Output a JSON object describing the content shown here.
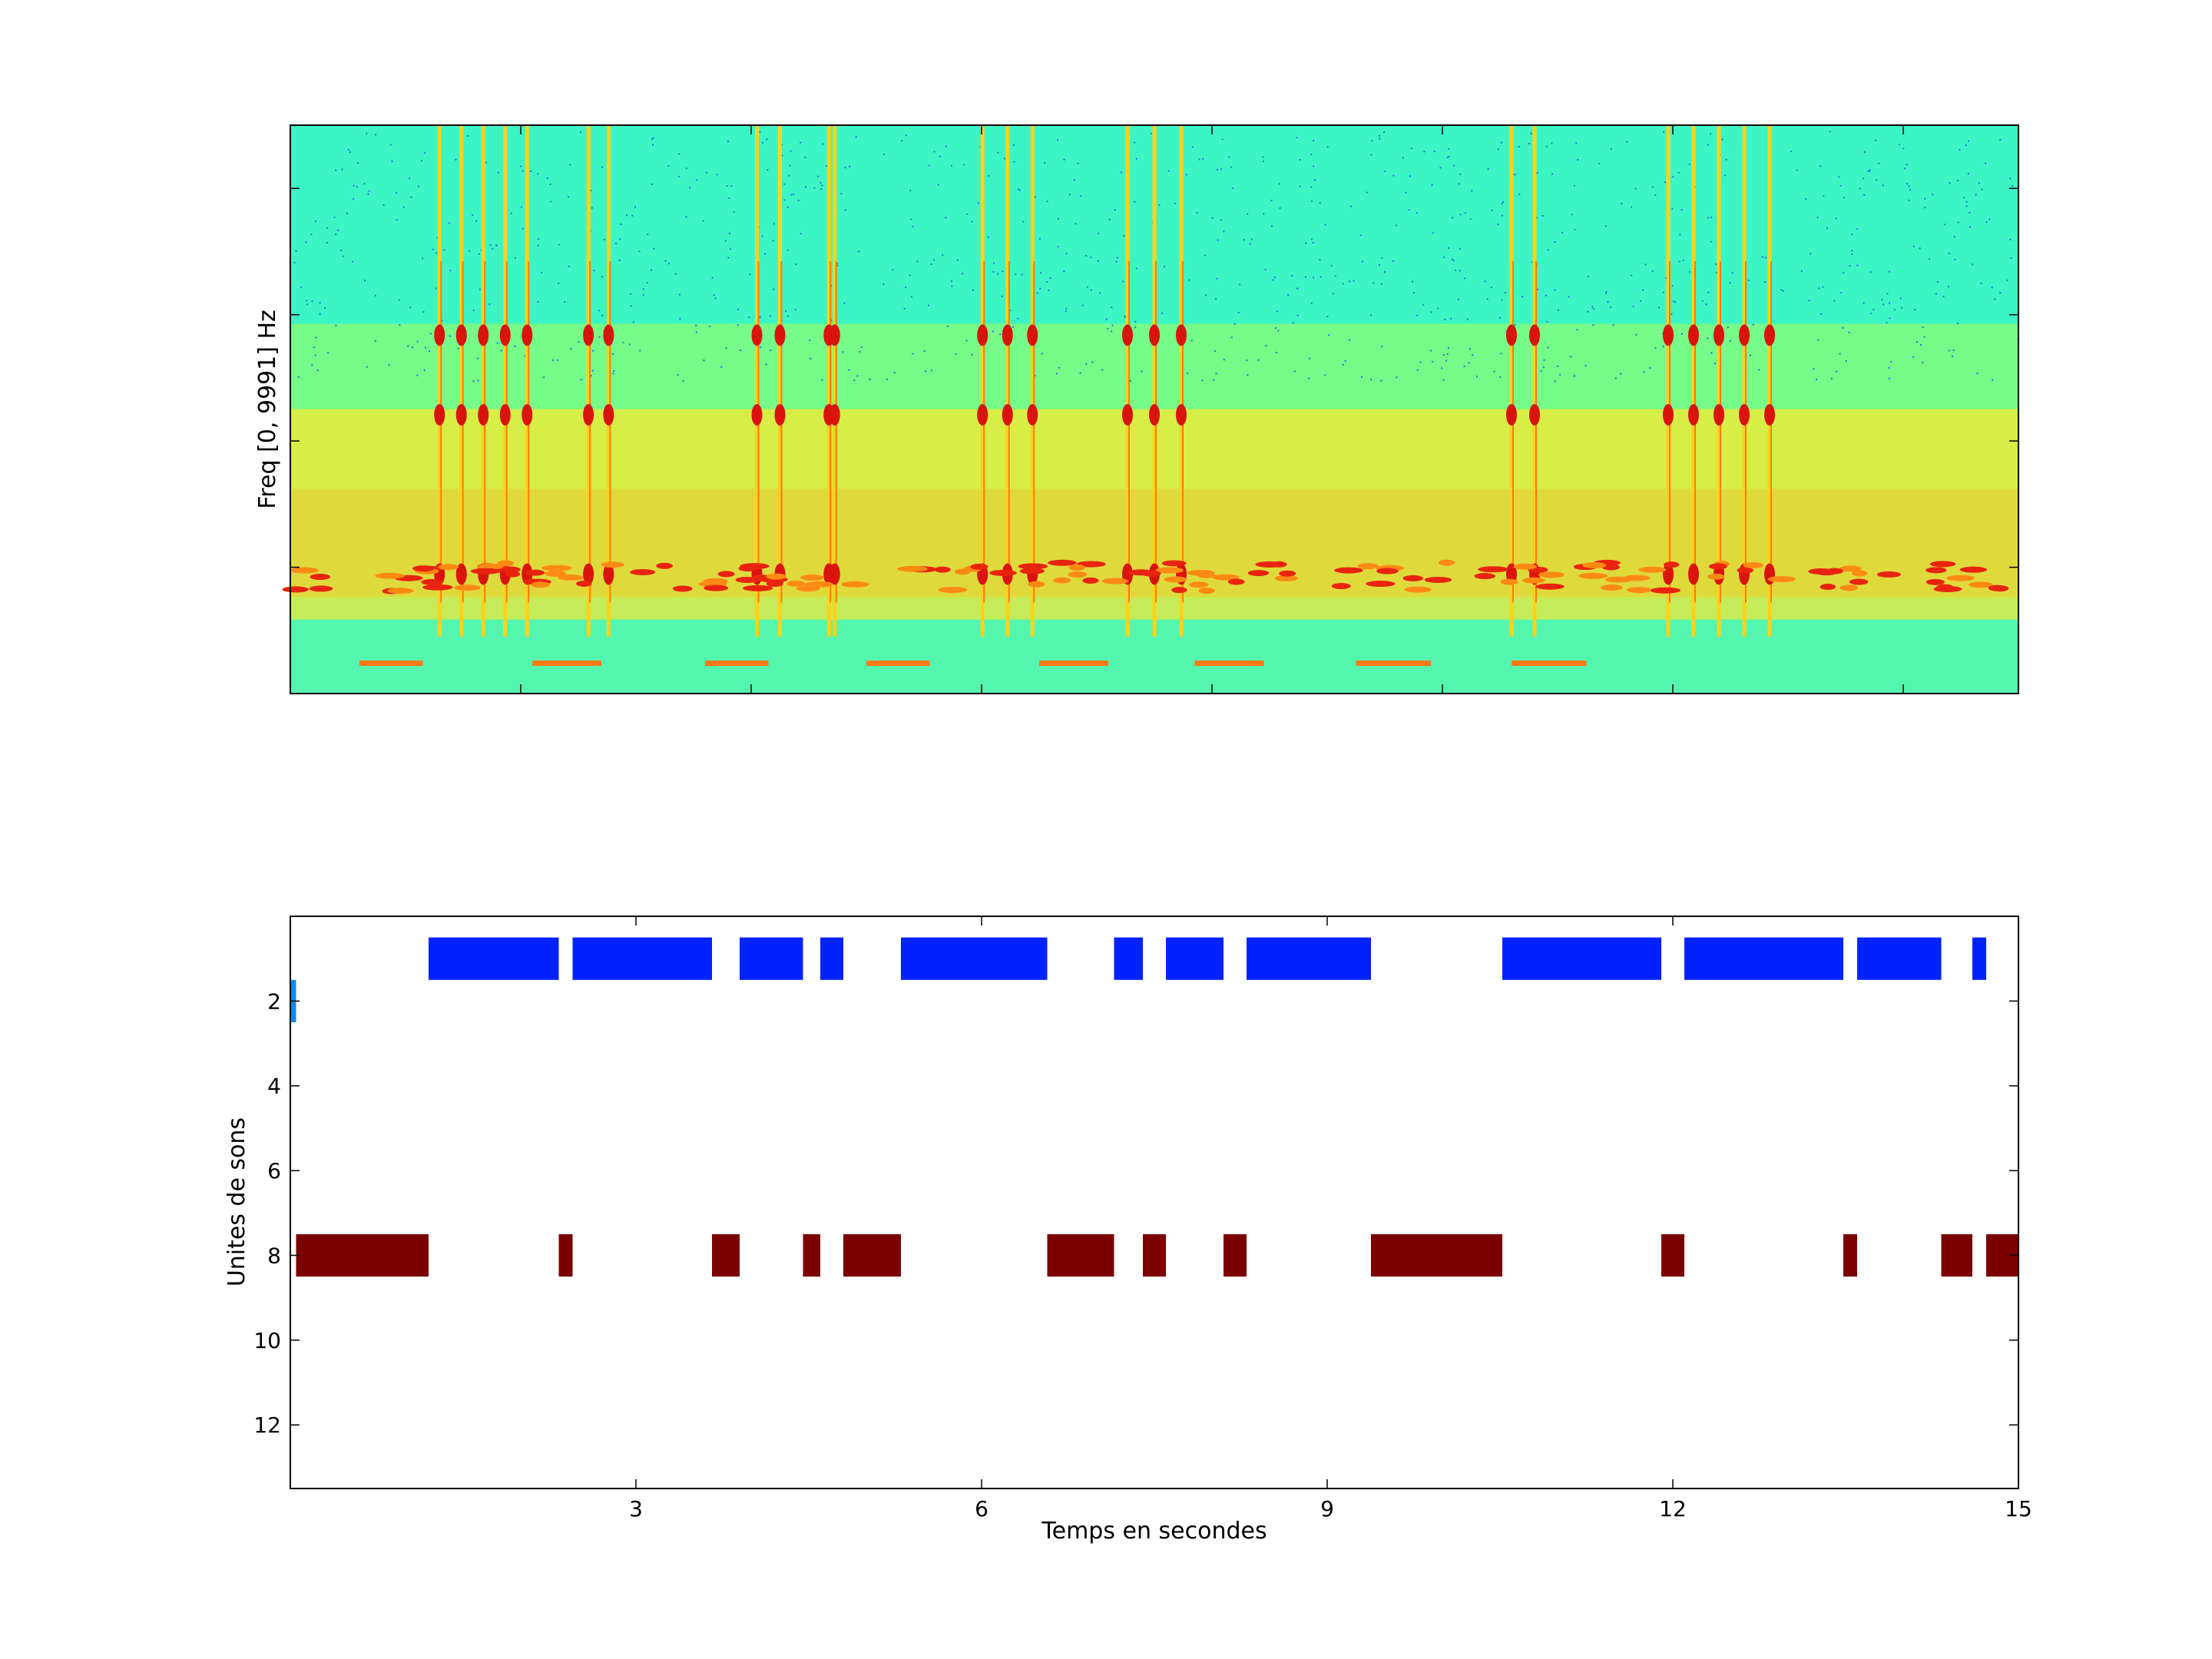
{
  "chart_data": [
    {
      "type": "heatmap",
      "title": "",
      "xlabel": "",
      "ylabel": "Freq [0, 9991] Hz",
      "xlim": [
        0,
        15
      ],
      "ylim": [
        0,
        9991
      ],
      "colormap": "jet",
      "grid": false,
      "xticks": [
        0,
        2,
        4,
        6,
        8,
        10,
        12,
        14
      ],
      "yticks": [
        0,
        2220,
        4440,
        6660,
        8880
      ],
      "features": {
        "harmonic_rows_hz": [
          6300,
          4900,
          2100
        ],
        "song_bursts": [
          [
            1.2,
            2.15
          ],
          [
            2.5,
            2.85
          ],
          [
            3.95,
            4.35
          ],
          [
            4.65,
            4.75
          ],
          [
            5.9,
            6.55
          ],
          [
            7.15,
            7.85
          ],
          [
            10.5,
            10.9
          ],
          [
            11.85,
            12.95
          ]
        ],
        "bottom_dashes": [
          [
            0.6,
            1.15
          ],
          [
            2.1,
            2.7
          ],
          [
            3.6,
            4.15
          ],
          [
            5.0,
            5.55
          ],
          [
            6.5,
            7.1
          ],
          [
            7.85,
            8.45
          ],
          [
            9.25,
            9.9
          ],
          [
            10.6,
            11.25
          ]
        ]
      }
    },
    {
      "type": "bar",
      "title": "",
      "xlabel": "Temps en secondes",
      "ylabel": "Unites de sons",
      "xlim": [
        0,
        15
      ],
      "ylim": [
        0,
        13.5
      ],
      "y_reversed": true,
      "grid": false,
      "xticks": [
        "3",
        "6",
        "9",
        "12",
        "15"
      ],
      "yticks": [
        "2",
        "4",
        "6",
        "8",
        "10",
        "12"
      ],
      "series": [
        {
          "unit": 1,
          "color": "#0022ff",
          "segments": [
            [
              1.2,
              2.33
            ],
            [
              2.45,
              3.66
            ],
            [
              3.9,
              4.45
            ],
            [
              4.6,
              4.8
            ],
            [
              5.3,
              6.57
            ],
            [
              7.15,
              7.4
            ],
            [
              7.6,
              8.1
            ],
            [
              8.3,
              9.38
            ],
            [
              10.52,
              11.9
            ],
            [
              12.1,
              13.48
            ],
            [
              13.6,
              14.33
            ],
            [
              14.6,
              14.72
            ]
          ]
        },
        {
          "unit": 2,
          "color": "#1189f0",
          "segments": [
            [
              0.0,
              0.05
            ]
          ]
        },
        {
          "unit": 8,
          "color": "#7b0000",
          "segments": [
            [
              0.05,
              1.2
            ],
            [
              2.33,
              2.45
            ],
            [
              3.66,
              3.9
            ],
            [
              4.45,
              4.6
            ],
            [
              4.8,
              5.3
            ],
            [
              6.57,
              7.15
            ],
            [
              7.4,
              7.6
            ],
            [
              8.1,
              8.3
            ],
            [
              9.38,
              10.52
            ],
            [
              11.9,
              12.1
            ],
            [
              13.48,
              13.6
            ],
            [
              14.33,
              14.6
            ],
            [
              14.72,
              15.0
            ]
          ]
        }
      ]
    }
  ]
}
